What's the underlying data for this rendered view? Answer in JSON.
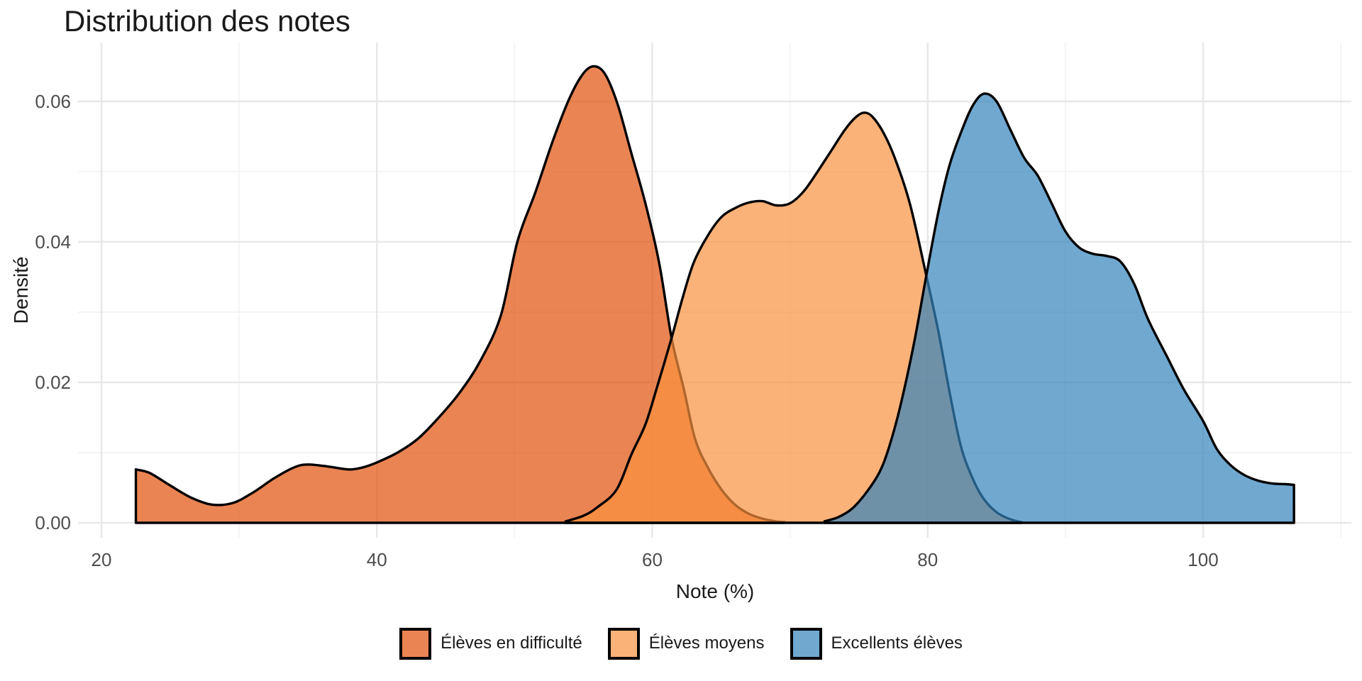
{
  "title": "Distribution des notes",
  "axes": {
    "x": {
      "title": "Note (%)",
      "tick_labels": [
        "20",
        "40",
        "60",
        "80",
        "100"
      ],
      "tick_values": [
        20,
        40,
        60,
        80,
        100
      ],
      "minor_values": [
        30,
        50,
        70,
        90,
        110
      ]
    },
    "y": {
      "title": "Densité",
      "tick_labels": [
        "0.00",
        "0.02",
        "0.04",
        "0.06"
      ],
      "tick_values": [
        0,
        0.02,
        0.04,
        0.06
      ],
      "minor_values": [
        0.01,
        0.03,
        0.05
      ]
    }
  },
  "legend": {
    "items": [
      {
        "label": "Élèves en difficulté",
        "color": "#E1500A"
      },
      {
        "label": "Élèves moyens",
        "color": "#F9913F"
      },
      {
        "label": "Excellents élèves",
        "color": "#3383BC"
      }
    ]
  },
  "style": {
    "fill_opacity": 0.7,
    "stroke_color": "#000000",
    "grid_major": "#E8E8E8",
    "grid_minor": "#F3F3F3"
  },
  "chart_data": {
    "type": "area",
    "subtype": "density",
    "title": "Distribution des notes",
    "xlabel": "Note (%)",
    "ylabel": "Densité",
    "xlim": [
      18.3,
      110.8
    ],
    "ylim": [
      0,
      0.0685
    ],
    "grid": "on",
    "legend_position": "bottom",
    "series": [
      {
        "name": "Élèves en difficulté",
        "color": "#E1500A",
        "points": [
          [
            22.5,
            0.0076
          ],
          [
            23.5,
            0.0071
          ],
          [
            25,
            0.0053
          ],
          [
            26.5,
            0.0036
          ],
          [
            28,
            0.0026
          ],
          [
            29.5,
            0.0028
          ],
          [
            31,
            0.0043
          ],
          [
            32.5,
            0.0063
          ],
          [
            34,
            0.0079
          ],
          [
            35,
            0.0083
          ],
          [
            36.5,
            0.008
          ],
          [
            38,
            0.0076
          ],
          [
            39,
            0.0079
          ],
          [
            40,
            0.0086
          ],
          [
            41.5,
            0.01
          ],
          [
            43,
            0.012
          ],
          [
            44.5,
            0.015
          ],
          [
            46,
            0.0185
          ],
          [
            47.5,
            0.023
          ],
          [
            49,
            0.0295
          ],
          [
            50.2,
            0.04
          ],
          [
            51.5,
            0.047
          ],
          [
            52.8,
            0.0545
          ],
          [
            54,
            0.0605
          ],
          [
            55,
            0.064
          ],
          [
            55.8,
            0.065
          ],
          [
            56.6,
            0.0638
          ],
          [
            57.5,
            0.0595
          ],
          [
            58.5,
            0.0525
          ],
          [
            59.5,
            0.0455
          ],
          [
            60.5,
            0.037
          ],
          [
            61.4,
            0.0263
          ],
          [
            62.3,
            0.019
          ],
          [
            63.1,
            0.012
          ],
          [
            64,
            0.008
          ],
          [
            65,
            0.0048
          ],
          [
            66,
            0.0026
          ],
          [
            67,
            0.0013
          ],
          [
            68,
            0.0006
          ],
          [
            69,
            0.0002
          ],
          [
            69.6,
            0.0001
          ]
        ]
      },
      {
        "name": "Élèves moyens",
        "color": "#F9913F",
        "points": [
          [
            53.7,
            0.0002
          ],
          [
            55,
            0.001
          ],
          [
            56,
            0.0022
          ],
          [
            57.4,
            0.0047
          ],
          [
            58.5,
            0.0098
          ],
          [
            59.5,
            0.014
          ],
          [
            60.3,
            0.019
          ],
          [
            61.4,
            0.0263
          ],
          [
            62.2,
            0.032
          ],
          [
            63,
            0.037
          ],
          [
            64,
            0.0408
          ],
          [
            65,
            0.0435
          ],
          [
            66,
            0.0448
          ],
          [
            67,
            0.0456
          ],
          [
            68,
            0.0458
          ],
          [
            69,
            0.0452
          ],
          [
            70,
            0.0455
          ],
          [
            71,
            0.0472
          ],
          [
            72,
            0.05
          ],
          [
            73,
            0.053
          ],
          [
            74,
            0.056
          ],
          [
            74.8,
            0.0578
          ],
          [
            75.4,
            0.0584
          ],
          [
            76,
            0.0578
          ],
          [
            76.8,
            0.0555
          ],
          [
            77.6,
            0.052
          ],
          [
            78.7,
            0.0455
          ],
          [
            79.9,
            0.0352
          ],
          [
            80.8,
            0.027
          ],
          [
            81.6,
            0.0185
          ],
          [
            82.4,
            0.011
          ],
          [
            83.2,
            0.0066
          ],
          [
            84,
            0.0036
          ],
          [
            85,
            0.0015
          ],
          [
            86,
            0.0005
          ],
          [
            86.8,
            0.0001
          ]
        ]
      },
      {
        "name": "Excellents élèves",
        "color": "#3383BC",
        "points": [
          [
            72.5,
            0.0002
          ],
          [
            73.5,
            0.0008
          ],
          [
            74.5,
            0.002
          ],
          [
            75.5,
            0.0042
          ],
          [
            76.5,
            0.0072
          ],
          [
            77.2,
            0.0108
          ],
          [
            78,
            0.0165
          ],
          [
            79,
            0.0255
          ],
          [
            79.9,
            0.0352
          ],
          [
            80.8,
            0.0445
          ],
          [
            81.6,
            0.051
          ],
          [
            82.5,
            0.056
          ],
          [
            83.3,
            0.0595
          ],
          [
            84.1,
            0.0611
          ],
          [
            85,
            0.06
          ],
          [
            86,
            0.056
          ],
          [
            87,
            0.052
          ],
          [
            88,
            0.0494
          ],
          [
            89,
            0.0455
          ],
          [
            90,
            0.0415
          ],
          [
            91,
            0.0392
          ],
          [
            92,
            0.0383
          ],
          [
            93,
            0.038
          ],
          [
            94,
            0.0372
          ],
          [
            95,
            0.034
          ],
          [
            96,
            0.029
          ],
          [
            97.4,
            0.0236
          ],
          [
            98.6,
            0.019
          ],
          [
            100,
            0.0145
          ],
          [
            101,
            0.0105
          ],
          [
            102,
            0.0082
          ],
          [
            103,
            0.0068
          ],
          [
            104,
            0.006
          ],
          [
            105,
            0.0056
          ],
          [
            106,
            0.0055
          ],
          [
            106.6,
            0.0054
          ]
        ]
      }
    ]
  }
}
